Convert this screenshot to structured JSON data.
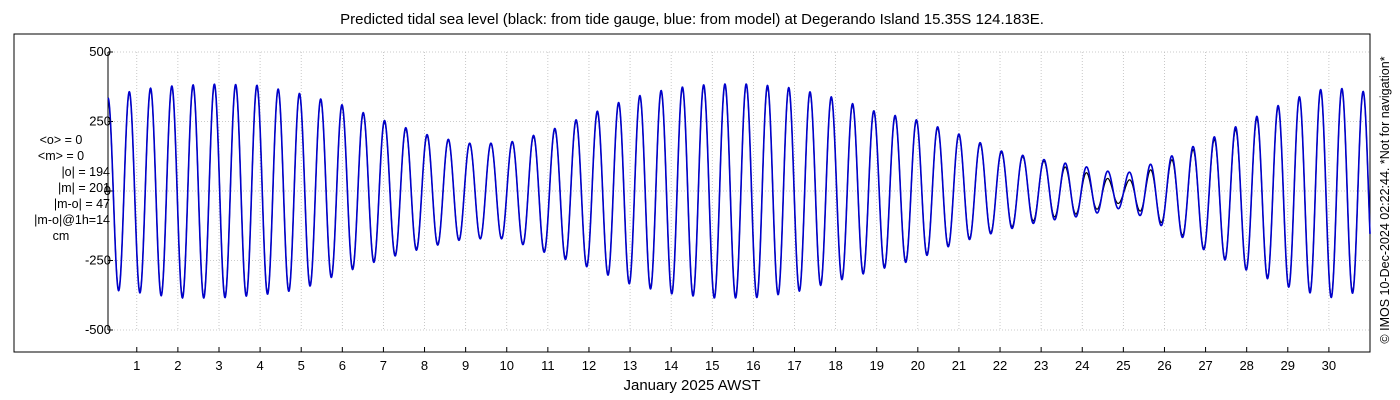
{
  "chart_data": {
    "type": "line",
    "title": "Predicted tidal sea level (black: from tide gauge, blue: from model) at Degerando Island 15.35S 124.183E.",
    "xlabel": "January 2025 AWST",
    "ylabel": "",
    "xlim": [
      0.3,
      31.0
    ],
    "ylim": [
      -500,
      500
    ],
    "x_tick_labels": [
      "1",
      "2",
      "3",
      "4",
      "5",
      "6",
      "7",
      "8",
      "9",
      "10",
      "11",
      "12",
      "13",
      "14",
      "15",
      "16",
      "17",
      "18",
      "19",
      "20",
      "21",
      "22",
      "23",
      "24",
      "25",
      "26",
      "27",
      "28",
      "29",
      "30"
    ],
    "y_ticks": [
      -500,
      -250,
      0,
      250,
      500
    ],
    "y_tick_labels": [
      "-500",
      "-250",
      "0",
      "250",
      "500"
    ],
    "grid": true,
    "series": [
      {
        "color": "#000000",
        "envelope": {
          "day": [
            0.3,
            1,
            2,
            3,
            4,
            5,
            6,
            7,
            8,
            9,
            10,
            11,
            12,
            13,
            14,
            15,
            16,
            17,
            18,
            19,
            20,
            21,
            22,
            23,
            24,
            25,
            26,
            27,
            28,
            29,
            30,
            31
          ],
          "high": [
            330,
            360,
            375,
            380,
            375,
            345,
            305,
            250,
            200,
            170,
            170,
            210,
            270,
            330,
            365,
            380,
            380,
            365,
            330,
            280,
            250,
            200,
            140,
            110,
            70,
            30,
            100,
            170,
            240,
            320,
            370,
            350
          ],
          "low": [
            -350,
            -360,
            -380,
            -380,
            -370,
            -350,
            -290,
            -240,
            -200,
            -170,
            -170,
            -220,
            -270,
            -330,
            -365,
            -380,
            -380,
            -360,
            -320,
            -280,
            -240,
            -180,
            -140,
            -100,
            -80,
            -40,
            -120,
            -210,
            -280,
            -340,
            -380,
            -350
          ]
        }
      },
      {
        "color": "#0000cc",
        "envelope": {
          "day": [
            0.3,
            1,
            2,
            3,
            4,
            5,
            6,
            7,
            8,
            9,
            10,
            11,
            12,
            13,
            14,
            15,
            16,
            17,
            18,
            19,
            20,
            21,
            22,
            23,
            24,
            25,
            26,
            27,
            28,
            29,
            30,
            31
          ],
          "high": [
            335,
            365,
            380,
            385,
            380,
            350,
            310,
            255,
            205,
            172,
            172,
            215,
            275,
            335,
            370,
            385,
            385,
            370,
            335,
            285,
            255,
            205,
            145,
            115,
            90,
            60,
            115,
            180,
            250,
            325,
            375,
            355
          ],
          "low": [
            -355,
            -365,
            -385,
            -385,
            -375,
            -355,
            -295,
            -245,
            -205,
            -172,
            -172,
            -225,
            -275,
            -335,
            -370,
            -385,
            -385,
            -365,
            -325,
            -285,
            -245,
            -185,
            -145,
            -110,
            -90,
            -60,
            -130,
            -215,
            -285,
            -345,
            -385,
            -355
          ]
        }
      }
    ]
  },
  "stats": {
    "mean_obs": "<o> = 0",
    "mean_model": "<m> = 0",
    "abs_obs": "|o| = 194",
    "abs_model": "|m| = 201",
    "abs_diff": "|m-o| = 47",
    "abs_diff_1h": "|m-o|@1h=14",
    "unit": "cm"
  },
  "credit": "© IMOS 10-Dec-2024 02:22:44. *Not for navigation*"
}
